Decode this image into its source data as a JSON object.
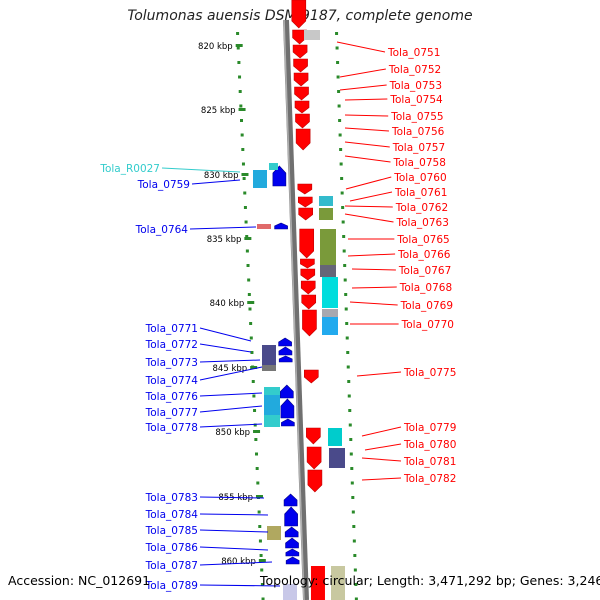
{
  "title": "Tolumonas auensis DSM 9187, complete genome",
  "accession": "Accession: NC_012691",
  "summary": "Topology: circular; Length: 3,471,292 bp; Genes: 3,246",
  "colors": {
    "forward": "#ff0000",
    "reverse": "#0000ee",
    "rna": "#33cccc",
    "tick": "#2a8a2a",
    "backbone": "#888888"
  },
  "scale_labels": [
    "820 kbp",
    "825 kbp",
    "830 kbp",
    "835 kbp",
    "840 kbp",
    "845 kbp",
    "850 kbp",
    "855 kbp",
    "860 kbp"
  ],
  "left_genes": [
    {
      "label": "Tola_R0027",
      "kind": "rna"
    },
    {
      "label": "Tola_0759",
      "kind": "reverse"
    },
    {
      "label": "Tola_0764",
      "kind": "reverse"
    },
    {
      "label": "Tola_0771",
      "kind": "reverse"
    },
    {
      "label": "Tola_0772",
      "kind": "reverse"
    },
    {
      "label": "Tola_0773",
      "kind": "reverse"
    },
    {
      "label": "Tola_0774",
      "kind": "reverse"
    },
    {
      "label": "Tola_0776",
      "kind": "reverse"
    },
    {
      "label": "Tola_0777",
      "kind": "reverse"
    },
    {
      "label": "Tola_0778",
      "kind": "reverse"
    },
    {
      "label": "Tola_0783",
      "kind": "reverse"
    },
    {
      "label": "Tola_0784",
      "kind": "reverse"
    },
    {
      "label": "Tola_0785",
      "kind": "reverse"
    },
    {
      "label": "Tola_0786",
      "kind": "reverse"
    },
    {
      "label": "Tola_0787",
      "kind": "reverse"
    },
    {
      "label": "Tola_0789",
      "kind": "reverse"
    }
  ],
  "right_genes": [
    {
      "label": "Tola_0751"
    },
    {
      "label": "Tola_0752"
    },
    {
      "label": "Tola_0753"
    },
    {
      "label": "Tola_0754"
    },
    {
      "label": "Tola_0755"
    },
    {
      "label": "Tola_0756"
    },
    {
      "label": "Tola_0757"
    },
    {
      "label": "Tola_0758"
    },
    {
      "label": "Tola_0760"
    },
    {
      "label": "Tola_0761"
    },
    {
      "label": "Tola_0762"
    },
    {
      "label": "Tola_0763"
    },
    {
      "label": "Tola_0765"
    },
    {
      "label": "Tola_0766"
    },
    {
      "label": "Tola_0767"
    },
    {
      "label": "Tola_0768"
    },
    {
      "label": "Tola_0769"
    },
    {
      "label": "Tola_0770"
    },
    {
      "label": "Tola_0775"
    },
    {
      "label": "Tola_0779"
    },
    {
      "label": "Tola_0780"
    },
    {
      "label": "Tola_0781"
    },
    {
      "label": "Tola_0782"
    }
  ]
}
